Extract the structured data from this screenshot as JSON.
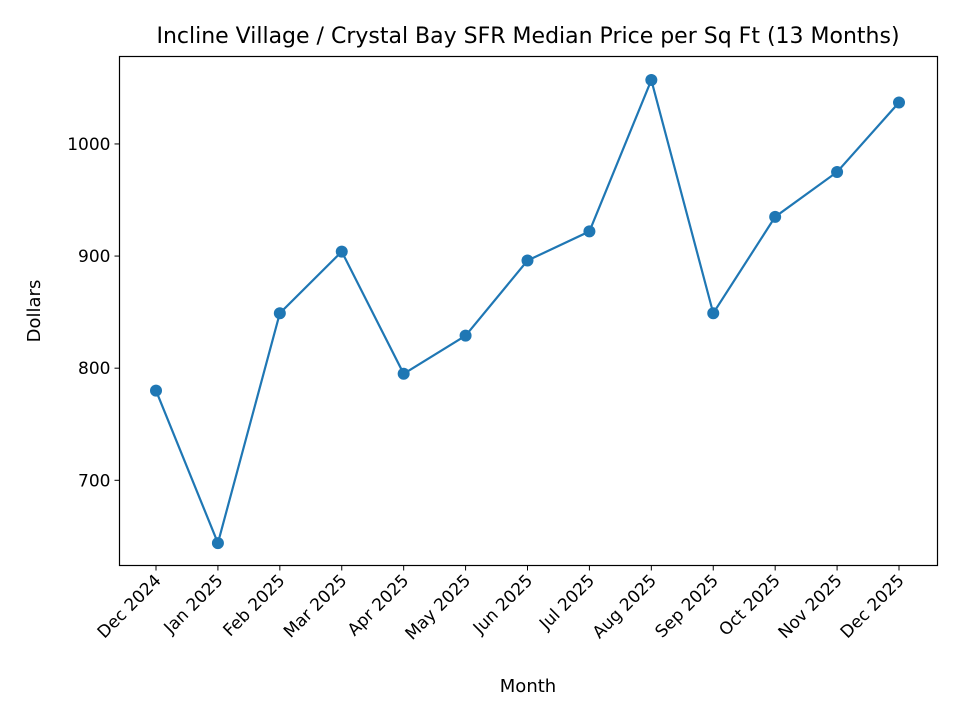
{
  "chart_data": {
    "type": "line",
    "title": "Incline Village / Crystal Bay SFR Median Price per Sq Ft (13 Months)",
    "xlabel": "Month",
    "ylabel": "Dollars",
    "categories": [
      "Dec 2024",
      "Jan 2025",
      "Feb 2025",
      "Mar 2025",
      "Apr 2025",
      "May 2025",
      "Jun 2025",
      "Jul 2025",
      "Aug 2025",
      "Sep 2025",
      "Oct 2025",
      "Nov 2025",
      "Dec 2025"
    ],
    "values": [
      780,
      644,
      849,
      904,
      795,
      829,
      896,
      922,
      1057,
      849,
      935,
      975,
      1037
    ],
    "ylim": [
      624,
      1078
    ],
    "yticks": [
      700,
      800,
      900,
      1000
    ],
    "grid": false,
    "markers": true,
    "color": "#1f77b4"
  }
}
